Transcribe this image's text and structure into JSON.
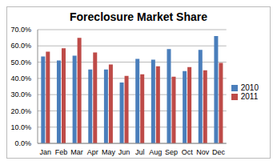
{
  "chart_data": {
    "type": "bar",
    "title": "Foreclosure Market Share",
    "categories": [
      "Jan",
      "Feb",
      "Mar",
      "Apr",
      "May",
      "Jun",
      "Jul",
      "Aug",
      "Sep",
      "Oct",
      "Nov",
      "Dec"
    ],
    "series": [
      {
        "name": "2010",
        "color": "#4a7ebb",
        "values": [
          53.5,
          51,
          54,
          45.5,
          45.5,
          37.5,
          52,
          51.5,
          58,
          44.5,
          57.5,
          66
        ]
      },
      {
        "name": "2011",
        "color": "#be4b48",
        "values": [
          56.5,
          58.5,
          65,
          56,
          48.5,
          41.5,
          42.5,
          47.5,
          41,
          47,
          45,
          49.5
        ]
      }
    ],
    "ylim": [
      0,
      70
    ],
    "yticks": [
      {
        "value": 0,
        "label": "0.0%"
      },
      {
        "value": 10,
        "label": "10.0%"
      },
      {
        "value": 20,
        "label": "20.0%"
      },
      {
        "value": 30,
        "label": "30.0%"
      },
      {
        "value": 40,
        "label": "40.0%"
      },
      {
        "value": 50,
        "label": "50.0%"
      },
      {
        "value": 60,
        "label": "60.0%"
      },
      {
        "value": 70,
        "label": "70.0%"
      }
    ],
    "grid": true,
    "legend": "right"
  }
}
